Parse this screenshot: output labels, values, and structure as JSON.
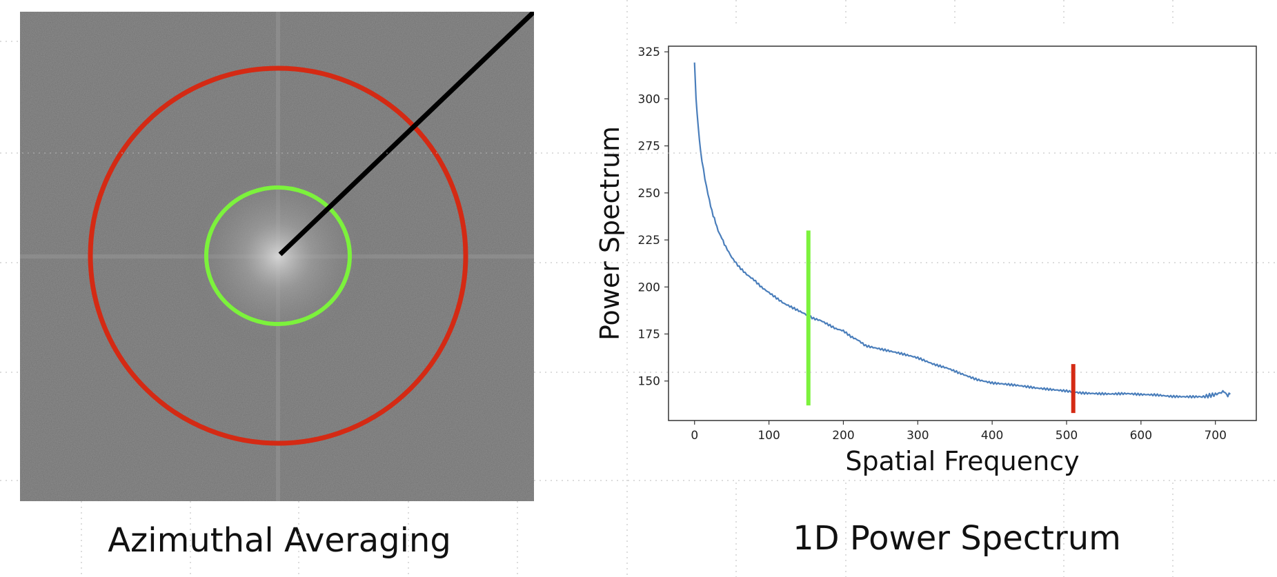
{
  "captions": {
    "left": "Azimuthal Averaging",
    "right": "1D Power Spectrum"
  },
  "fft_image": {
    "background_color": "#707070",
    "inner_ring_color": "#7cf23c",
    "outer_ring_color": "#d42a14",
    "radial_line_color": "#000000"
  },
  "chart_data": {
    "type": "line",
    "xlabel": "Spatial Frequency",
    "ylabel": "Power Spectrum",
    "xlim": [
      -35,
      755
    ],
    "ylim": [
      129,
      328
    ],
    "xticks": [
      0,
      100,
      200,
      300,
      400,
      500,
      600,
      700
    ],
    "yticks": [
      150,
      175,
      200,
      225,
      250,
      275,
      300,
      325
    ],
    "grid": false,
    "series": [
      {
        "color": "#4a7ebb",
        "x": [
          0,
          2,
          5,
          8,
          12,
          16,
          20,
          25,
          30,
          35,
          40,
          50,
          60,
          70,
          80,
          90,
          100,
          110,
          120,
          130,
          140,
          150,
          160,
          170,
          180,
          190,
          200,
          210,
          220,
          230,
          240,
          250,
          260,
          270,
          280,
          290,
          300,
          320,
          340,
          360,
          380,
          400,
          420,
          440,
          460,
          480,
          500,
          520,
          540,
          560,
          580,
          600,
          620,
          640,
          660,
          680,
          700,
          710,
          715,
          720
        ],
        "y": [
          319,
          300,
          285,
          272,
          262,
          253,
          246,
          238,
          232,
          227,
          223,
          216,
          211,
          207,
          204,
          200,
          197,
          194,
          191,
          189,
          187,
          185,
          183,
          182,
          180,
          178,
          177,
          174,
          172,
          169,
          168,
          167,
          166,
          165,
          164,
          163,
          162,
          159,
          157,
          154,
          151,
          149,
          148,
          147,
          146,
          145.5,
          145,
          144,
          143.5,
          143,
          143,
          142.5,
          142.5,
          142,
          142,
          142,
          143,
          144,
          143,
          143
        ]
      }
    ],
    "markers": [
      {
        "x": 153,
        "y_from": 137,
        "y_to": 230,
        "color": "#7cf23c"
      },
      {
        "x": 509,
        "y_from": 133,
        "y_to": 159,
        "color": "#d42a14"
      }
    ]
  }
}
